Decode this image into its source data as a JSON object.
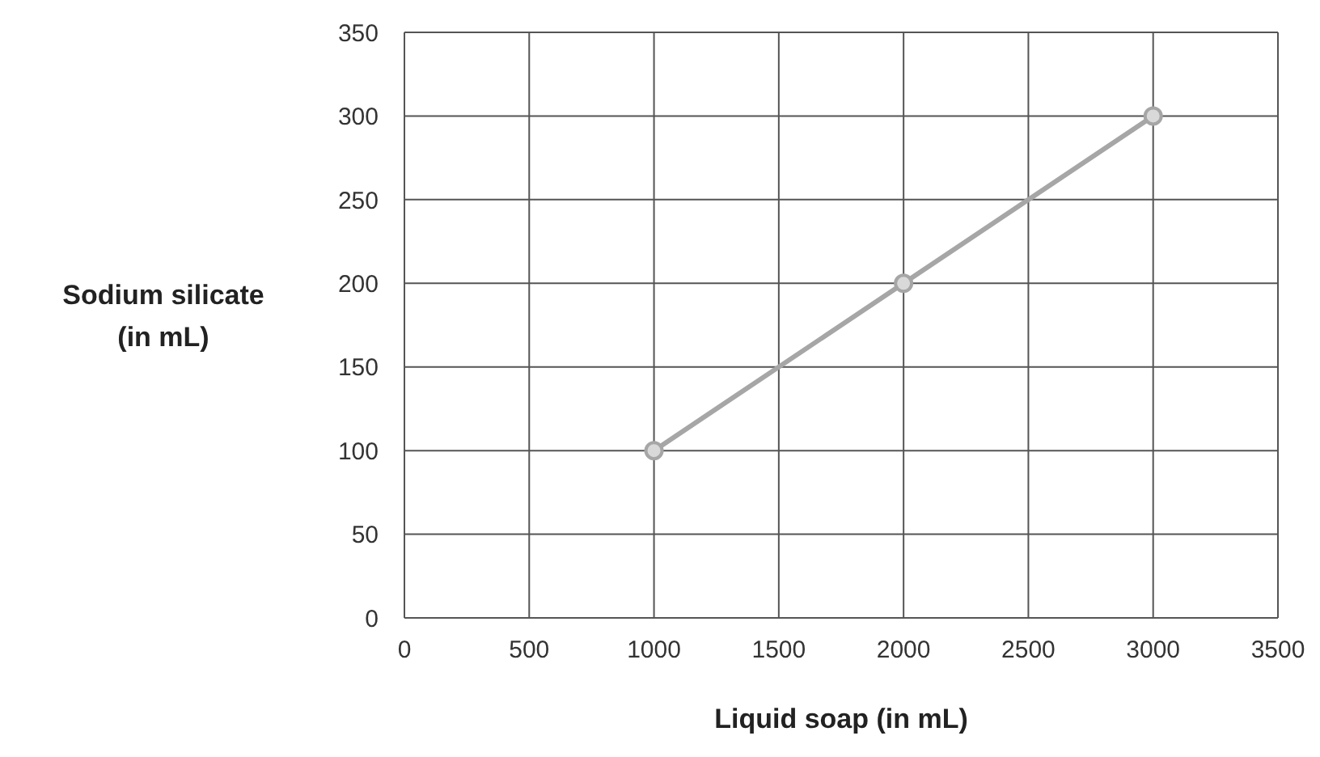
{
  "chart_data": {
    "type": "line",
    "xlabel": "Liquid soap (in mL)",
    "ylabel": "Sodium silicate\n(in mL)",
    "x": [
      1000,
      2000,
      3000
    ],
    "series": [
      {
        "color": "#a6a6a6",
        "values": [
          100,
          200,
          300
        ]
      }
    ],
    "xlim": [
      0,
      3500
    ],
    "xticks": [
      0,
      500,
      1000,
      1500,
      2000,
      2500,
      3000,
      3500
    ],
    "ylim": [
      0,
      350
    ],
    "yticks": [
      0,
      50,
      100,
      150,
      200,
      250,
      300,
      350
    ],
    "grid": true,
    "legend": false,
    "marker": "circle",
    "line_style": "solid"
  }
}
